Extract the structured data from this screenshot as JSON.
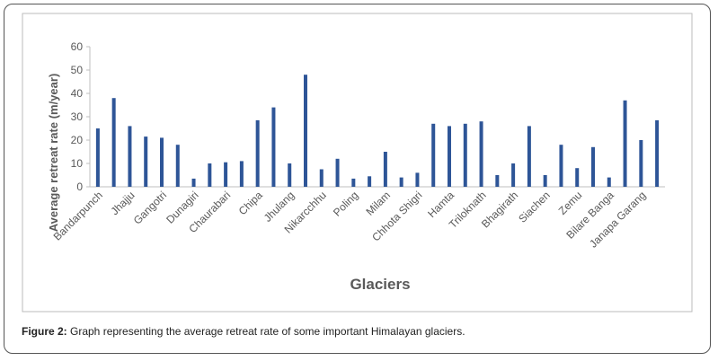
{
  "chart_data": {
    "type": "bar",
    "y_label": "Average retreat rate (m/year)",
    "x_label": "Glaciers",
    "categories": [
      "Bandarpunch",
      null,
      "Jhajju",
      null,
      "Gangotri",
      null,
      "Dunagiri",
      null,
      "Chaurabari",
      null,
      "Chipa",
      null,
      "Jhulang",
      null,
      "Nikarcchhu",
      null,
      "Poling",
      null,
      "Milam",
      null,
      "Chhota Shigri",
      null,
      "Hamta",
      null,
      "Triloknath",
      null,
      "Bhagirath",
      null,
      "Siachen",
      null,
      "Zemu",
      null,
      "Bilare Banga",
      null,
      "Janapa Garang",
      null
    ],
    "values": [
      25,
      38,
      26,
      21.5,
      21,
      18,
      3.5,
      10,
      10.5,
      11,
      28.5,
      34,
      10,
      48,
      7.5,
      12,
      3.5,
      4.5,
      15,
      4,
      6,
      27,
      26,
      27,
      28,
      5,
      10,
      26,
      5,
      18,
      8,
      17,
      4,
      37,
      20,
      28.5
    ],
    "color": "#2e5597",
    "ylim": [
      0,
      60
    ],
    "yticks": [
      0,
      10,
      20,
      30,
      40,
      50,
      60
    ]
  },
  "caption": {
    "label": "Figure 2:",
    "text": " Graph representing the average retreat rate of some important Himalayan glaciers."
  }
}
